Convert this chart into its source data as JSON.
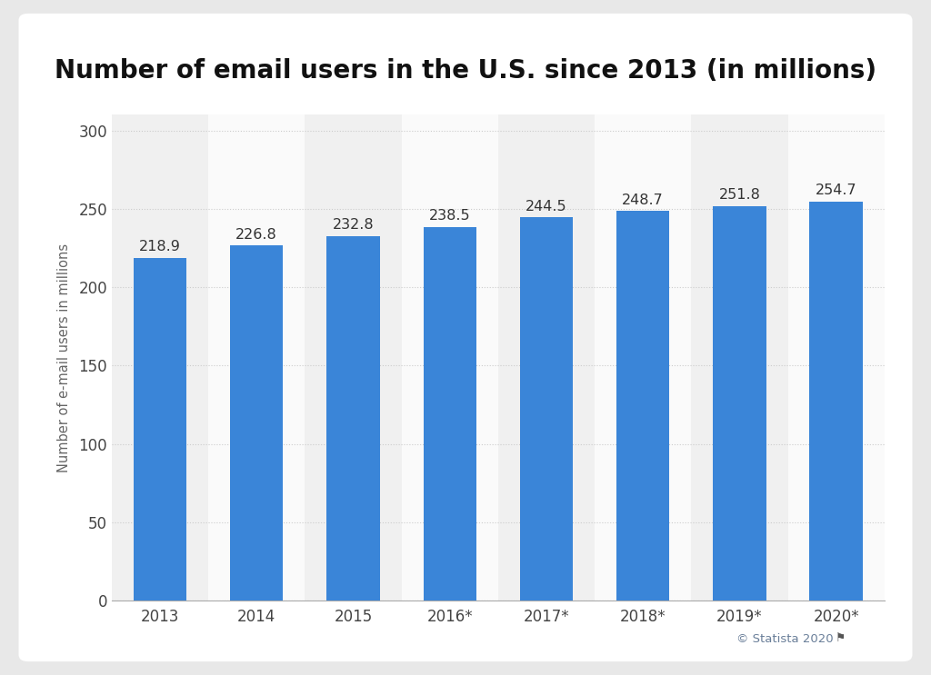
{
  "title": "Number of email users in the U.S. since 2013 (in millions)",
  "categories": [
    "2013",
    "2014",
    "2015",
    "2016*",
    "2017*",
    "2018*",
    "2019*",
    "2020*"
  ],
  "values": [
    218.9,
    226.8,
    232.8,
    238.5,
    244.5,
    248.7,
    251.8,
    254.7
  ],
  "bar_color": "#3a85d8",
  "ylabel": "Number of e-mail users in millions",
  "ylim": [
    0,
    310
  ],
  "yticks": [
    0,
    50,
    100,
    150,
    200,
    250,
    300
  ],
  "title_fontsize": 20,
  "label_fontsize": 10.5,
  "tick_fontsize": 12,
  "annotation_fontsize": 11.5,
  "outer_bg": "#e8e8e8",
  "card_bg": "#ffffff",
  "plot_bg_odd": "#f0f0f0",
  "plot_bg_even": "#fafafa",
  "grid_color": "#cccccc",
  "annotation_color": "#333333",
  "watermark": "© Statista 2020",
  "watermark_color": "#6a7f99",
  "bar_width": 0.55
}
